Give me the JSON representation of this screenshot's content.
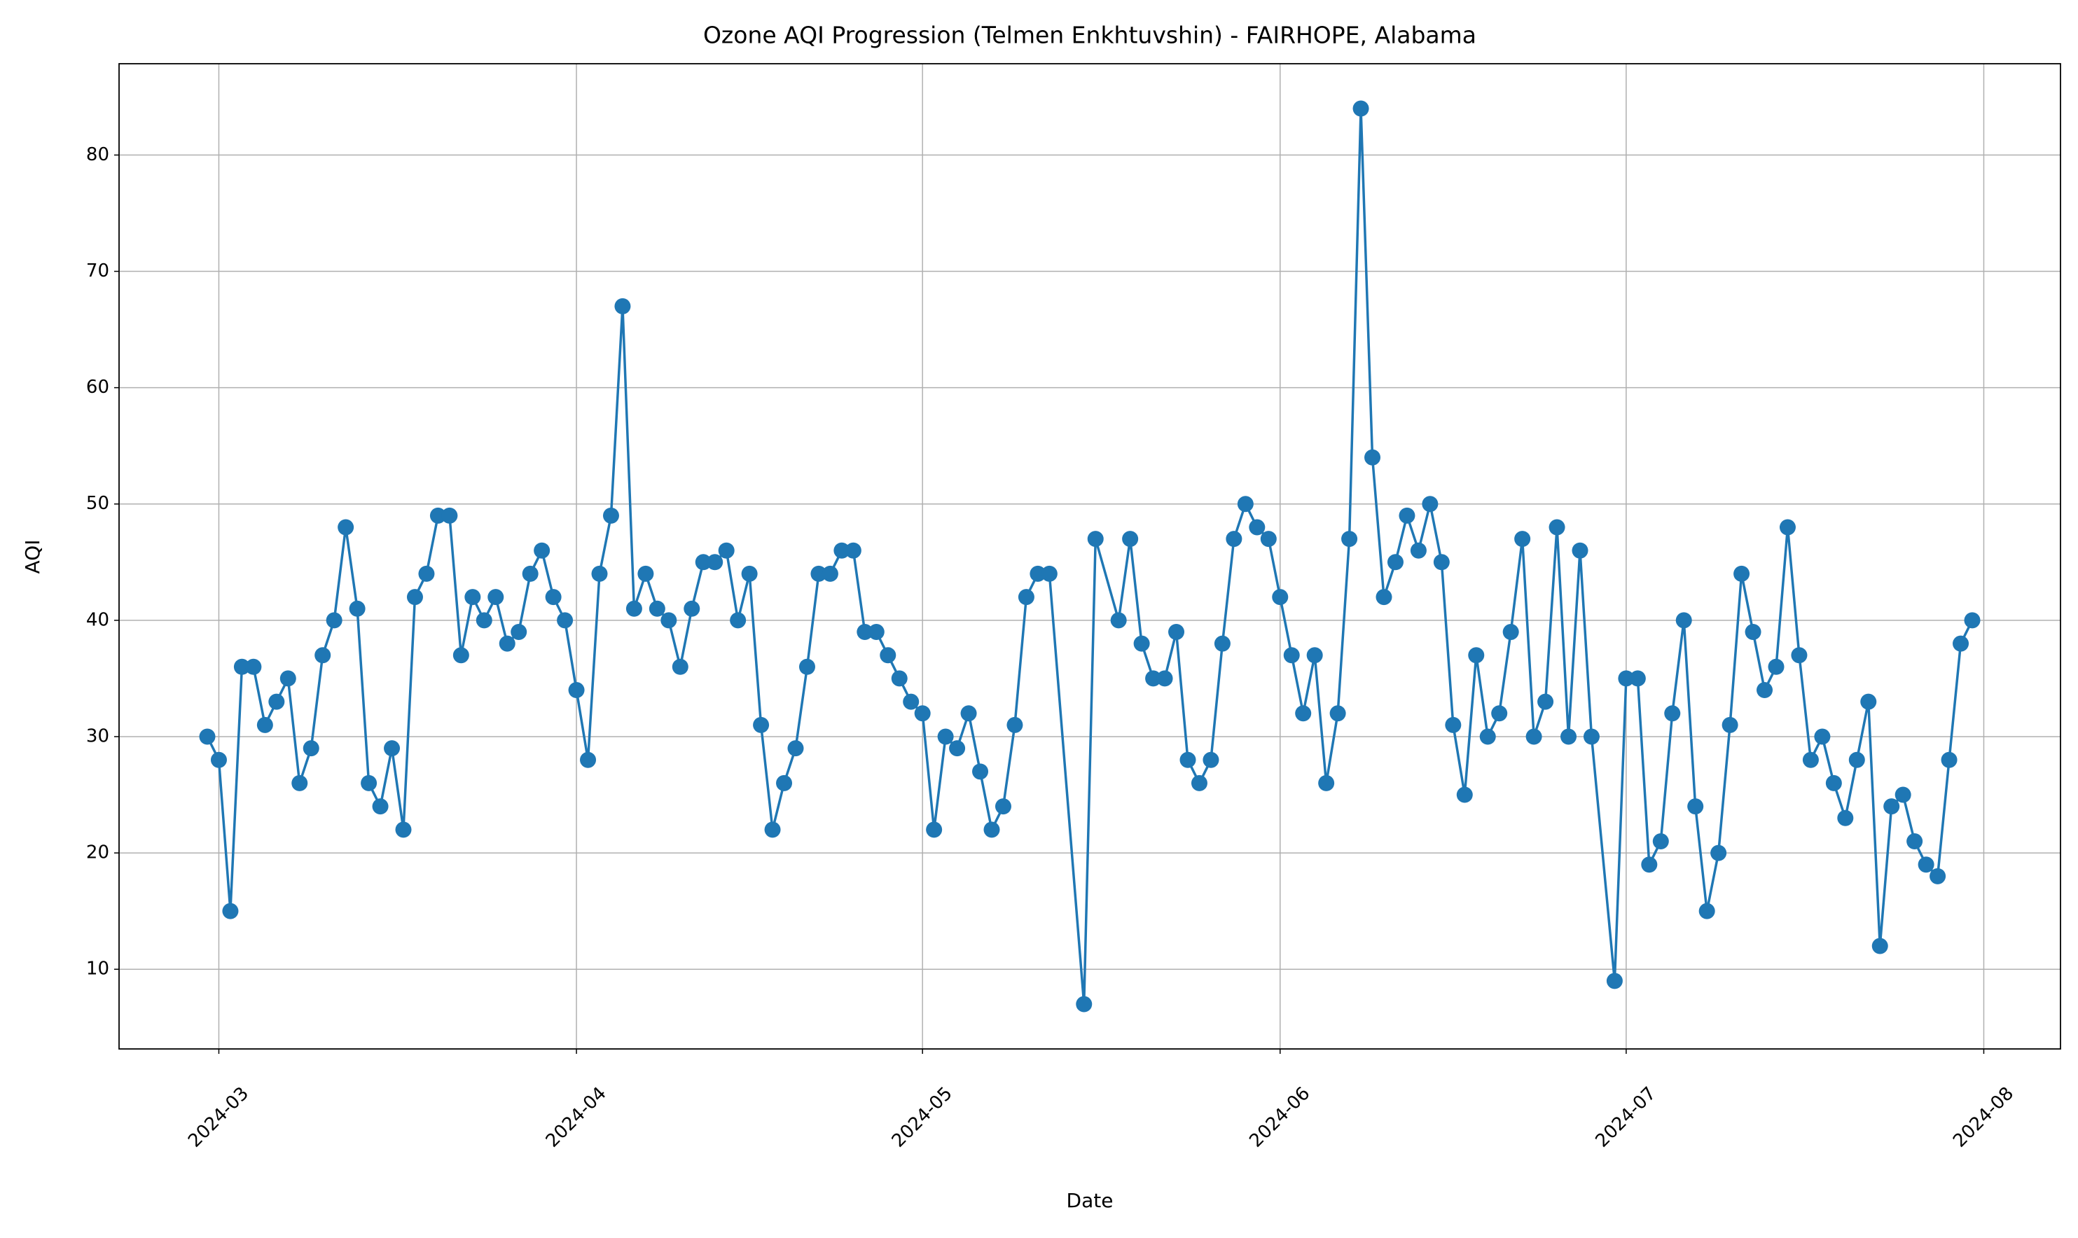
{
  "chart_data": {
    "type": "line",
    "title": "Ozone AQI Progression (Telmen Enkhtuvshin) - FAIRHOPE, Alabama",
    "x_label": "Date",
    "y_label": "AQI",
    "x": [
      19782,
      19783,
      19784,
      19785,
      19786,
      19787,
      19788,
      19789,
      19790,
      19791,
      19792,
      19793,
      19794,
      19795,
      19796,
      19797,
      19798,
      19799,
      19800,
      19801,
      19802,
      19803,
      19804,
      19805,
      19806,
      19807,
      19808,
      19809,
      19810,
      19811,
      19812,
      19813,
      19814,
      19815,
      19816,
      19817,
      19818,
      19819,
      19820,
      19821,
      19822,
      19823,
      19824,
      19825,
      19826,
      19827,
      19828,
      19829,
      19830,
      19831,
      19832,
      19833,
      19834,
      19835,
      19836,
      19837,
      19838,
      19839,
      19840,
      19841,
      19842,
      19843,
      19844,
      19845,
      19846,
      19847,
      19848,
      19849,
      19850,
      19851,
      19852,
      19853,
      19854,
      19855,
      19858,
      19859,
      19861,
      19862,
      19863,
      19864,
      19865,
      19866,
      19867,
      19868,
      19869,
      19870,
      19871,
      19872,
      19873,
      19874,
      19875,
      19876,
      19877,
      19878,
      19879,
      19880,
      19881,
      19882,
      19883,
      19884,
      19885,
      19886,
      19887,
      19888,
      19889,
      19890,
      19891,
      19892,
      19893,
      19894,
      19895,
      19896,
      19897,
      19898,
      19899,
      19900,
      19901,
      19902,
      19904,
      19905,
      19906,
      19907,
      19908,
      19909,
      19910,
      19911,
      19912,
      19913,
      19914,
      19915,
      19916,
      19917,
      19918,
      19919,
      19920,
      19921,
      19922,
      19923,
      19924,
      19925,
      19926,
      19927,
      19928,
      19929,
      19930,
      19931,
      19932,
      19933,
      19934,
      19935
    ],
    "values": [
      30,
      28,
      15,
      36,
      36,
      31,
      33,
      35,
      26,
      29,
      37,
      40,
      48,
      41,
      26,
      24,
      29,
      22,
      42,
      44,
      49,
      49,
      37,
      42,
      40,
      42,
      38,
      39,
      44,
      46,
      42,
      40,
      34,
      28,
      44,
      49,
      67,
      41,
      44,
      41,
      40,
      36,
      41,
      45,
      45,
      46,
      40,
      44,
      31,
      22,
      26,
      29,
      36,
      44,
      44,
      46,
      46,
      39,
      39,
      37,
      35,
      33,
      32,
      22,
      30,
      29,
      32,
      27,
      22,
      24,
      31,
      42,
      44,
      44,
      7,
      47,
      40,
      47,
      38,
      35,
      35,
      39,
      28,
      26,
      28,
      38,
      47,
      50,
      48,
      47,
      42,
      37,
      32,
      37,
      26,
      32,
      47,
      84,
      54,
      42,
      45,
      49,
      46,
      50,
      45,
      31,
      25,
      37,
      30,
      32,
      39,
      47,
      30,
      33,
      48,
      30,
      46,
      30,
      9,
      35,
      35,
      19,
      21,
      32,
      40,
      24,
      15,
      20,
      31,
      44,
      39,
      34,
      36,
      48,
      37,
      28,
      30,
      26,
      23,
      28,
      33,
      12,
      24,
      25,
      21,
      19,
      18,
      28,
      38,
      40
    ],
    "color": "#1f77b4",
    "xlim": [
      19774.35,
      19942.65
    ],
    "xticks": [
      {
        "value": 19783,
        "label": "2024-03"
      },
      {
        "value": 19814,
        "label": "2024-04"
      },
      {
        "value": 19844,
        "label": "2024-05"
      },
      {
        "value": 19875,
        "label": "2024-06"
      },
      {
        "value": 19905,
        "label": "2024-07"
      },
      {
        "value": 19936,
        "label": "2024-08"
      }
    ],
    "ylim": [
      3.15,
      87.85
    ],
    "yticks": [
      10,
      20,
      30,
      40,
      50,
      60,
      70,
      80
    ],
    "grid": true
  }
}
